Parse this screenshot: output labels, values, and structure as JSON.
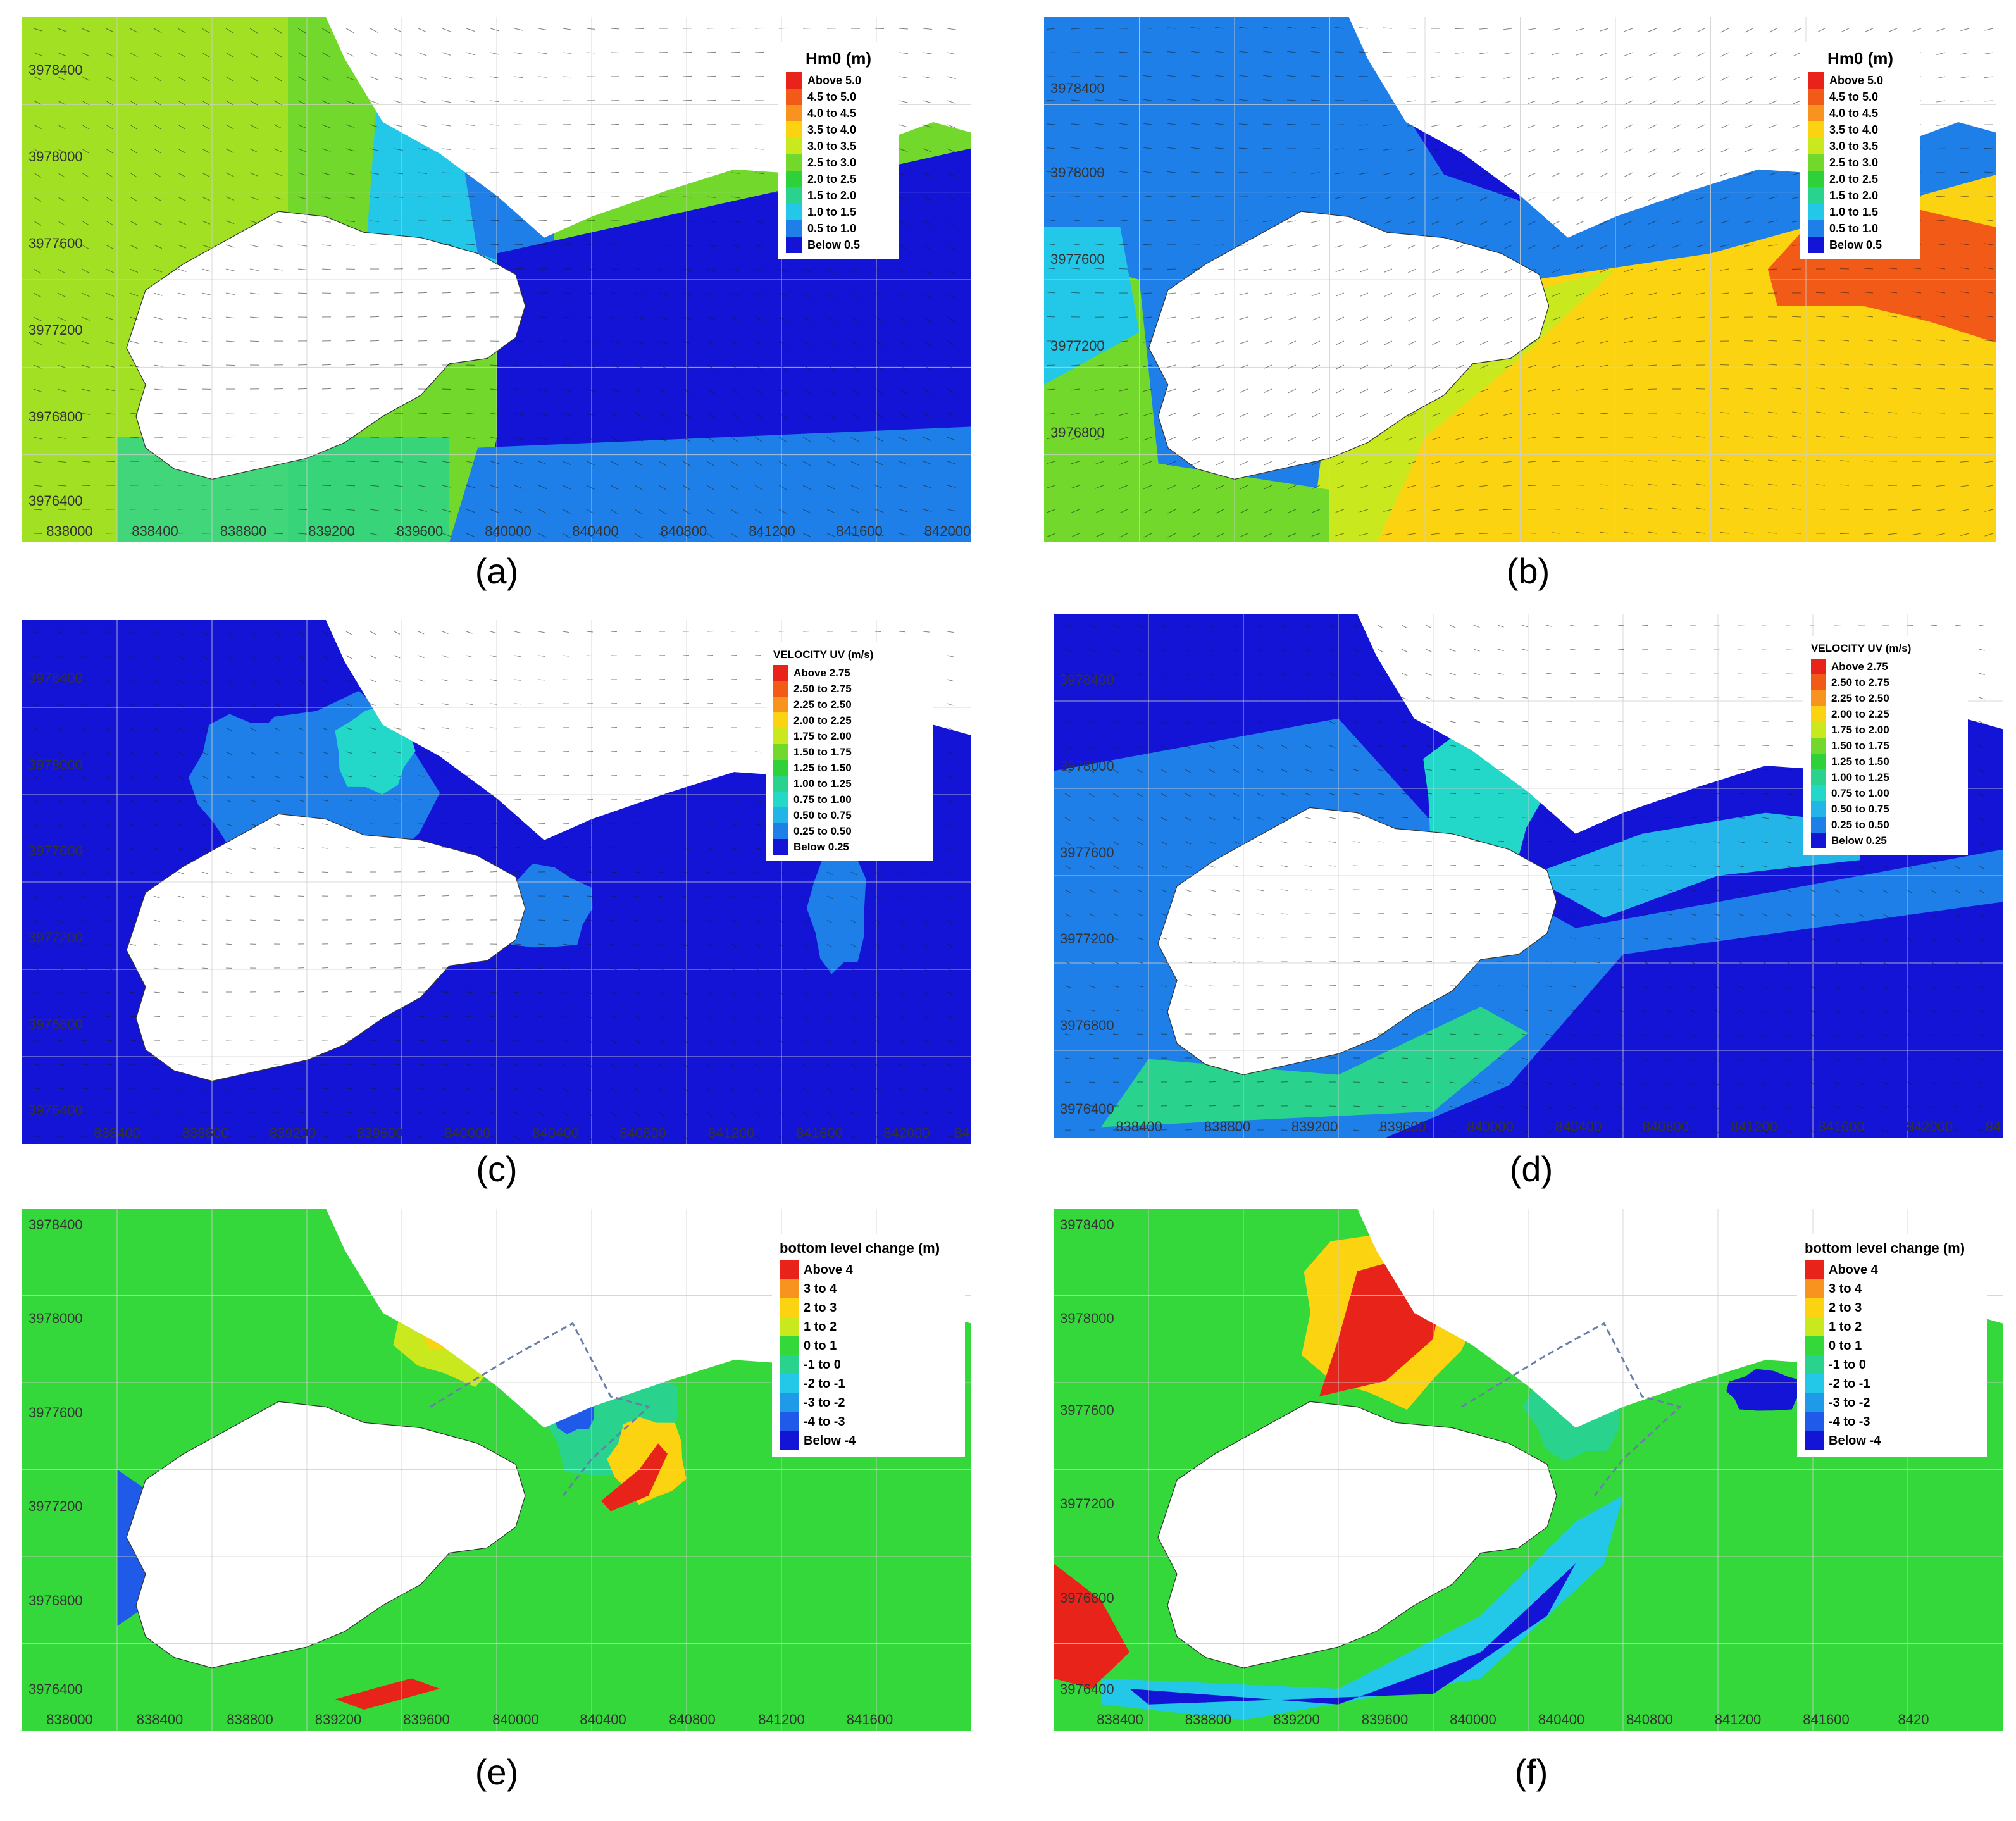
{
  "colors": {
    "land": "#ffffff",
    "grid": "#cfcfcf",
    "arrow": "#1a1a1a",
    "dashed_line": "#6a7fa8"
  },
  "panels": [
    {
      "id": "a",
      "caption": "(a)",
      "legend_title": "Hm0 (m)",
      "legend_items": [
        {
          "label": "Above 5.0",
          "color": "#e8231a"
        },
        {
          "label": "4.5 to 5.0",
          "color": "#f25a18"
        },
        {
          "label": "4.0 to 4.5",
          "color": "#f7931e"
        },
        {
          "label": "3.5 to 4.0",
          "color": "#fbd311"
        },
        {
          "label": "3.0 to 3.5",
          "color": "#c9e81e"
        },
        {
          "label": "2.5 to 3.0",
          "color": "#72d82b"
        },
        {
          "label": "2.0 to 2.5",
          "color": "#2fd13a"
        },
        {
          "label": "1.5 to 2.0",
          "color": "#29d38e"
        },
        {
          "label": "1.0 to 1.5",
          "color": "#23c8e8"
        },
        {
          "label": "0.5 to 1.0",
          "color": "#1f7fe8"
        },
        {
          "label": "Below 0.5",
          "color": "#1414d6"
        }
      ],
      "y_ticks": [
        "3978400",
        "3978000",
        "3977600",
        "3977200",
        "3976800",
        "3976400"
      ],
      "x_ticks": [
        "838000",
        "838400",
        "838800",
        "839200",
        "839600",
        "840000",
        "840400",
        "840800",
        "841200",
        "841600",
        "842000"
      ]
    },
    {
      "id": "b",
      "caption": "(b)",
      "legend_title": "Hm0 (m)",
      "legend_items": [
        {
          "label": "Above 5.0",
          "color": "#e8231a"
        },
        {
          "label": "4.5 to 5.0",
          "color": "#f25a18"
        },
        {
          "label": "4.0 to 4.5",
          "color": "#f7931e"
        },
        {
          "label": "3.5 to 4.0",
          "color": "#fbd311"
        },
        {
          "label": "3.0 to 3.5",
          "color": "#c9e81e"
        },
        {
          "label": "2.5 to 3.0",
          "color": "#72d82b"
        },
        {
          "label": "2.0 to 2.5",
          "color": "#2fd13a"
        },
        {
          "label": "1.5 to 2.0",
          "color": "#29d38e"
        },
        {
          "label": "1.0 to 1.5",
          "color": "#23c8e8"
        },
        {
          "label": "0.5 to 1.0",
          "color": "#1f7fe8"
        },
        {
          "label": "Below 0.5",
          "color": "#1414d6"
        }
      ],
      "y_ticks": [
        "3978400",
        "3978000",
        "3977600",
        "3977200",
        "3976800"
      ],
      "x_ticks": []
    },
    {
      "id": "c",
      "caption": "(c)",
      "legend_title": "VELOCITY UV (m/s)",
      "legend_items": [
        {
          "label": "Above 2.75",
          "color": "#e8231a"
        },
        {
          "label": "2.50 to 2.75",
          "color": "#f25a18"
        },
        {
          "label": "2.25 to 2.50",
          "color": "#f7931e"
        },
        {
          "label": "2.00 to 2.25",
          "color": "#fbd311"
        },
        {
          "label": "1.75 to 2.00",
          "color": "#c9e81e"
        },
        {
          "label": "1.50 to 1.75",
          "color": "#72d82b"
        },
        {
          "label": "1.25 to 1.50",
          "color": "#2fd13a"
        },
        {
          "label": "1.00 to 1.25",
          "color": "#29d38e"
        },
        {
          "label": "0.75 to 1.00",
          "color": "#23d8c8"
        },
        {
          "label": "0.50 to 0.75",
          "color": "#23b4e8"
        },
        {
          "label": "0.25 to 0.50",
          "color": "#1f7fe8"
        },
        {
          "label": "Below 0.25",
          "color": "#1414d6"
        }
      ],
      "y_ticks": [
        "3978400",
        "3978000",
        "3977600",
        "3977200",
        "3976800",
        "3976400"
      ],
      "x_ticks": [
        "838400",
        "838800",
        "839200",
        "839600",
        "840000",
        "840400",
        "840800",
        "841200",
        "841600",
        "842000",
        "84"
      ]
    },
    {
      "id": "d",
      "caption": "(d)",
      "legend_title": "VELOCITY UV (m/s)",
      "legend_items": [
        {
          "label": "Above 2.75",
          "color": "#e8231a"
        },
        {
          "label": "2.50 to 2.75",
          "color": "#f25a18"
        },
        {
          "label": "2.25 to 2.50",
          "color": "#f7931e"
        },
        {
          "label": "2.00 to 2.25",
          "color": "#fbd311"
        },
        {
          "label": "1.75 to 2.00",
          "color": "#c9e81e"
        },
        {
          "label": "1.50 to 1.75",
          "color": "#72d82b"
        },
        {
          "label": "1.25 to 1.50",
          "color": "#2fd13a"
        },
        {
          "label": "1.00 to 1.25",
          "color": "#29d38e"
        },
        {
          "label": "0.75 to 1.00",
          "color": "#23d8c8"
        },
        {
          "label": "0.50 to 0.75",
          "color": "#23b4e8"
        },
        {
          "label": "0.25 to 0.50",
          "color": "#1f7fe8"
        },
        {
          "label": "Below 0.25",
          "color": "#1414d6"
        }
      ],
      "y_ticks": [
        "3978400",
        "3978000",
        "3977600",
        "3977200",
        "3976800",
        "3976400"
      ],
      "x_ticks": [
        "838400",
        "838800",
        "839200",
        "839600",
        "840000",
        "840400",
        "840800",
        "841200",
        "841600",
        "842000",
        "84"
      ]
    },
    {
      "id": "e",
      "caption": "(e)",
      "legend_title": "bottom level change (m)",
      "legend_items": [
        {
          "label": "Above 4",
          "color": "#e8231a"
        },
        {
          "label": "3 to 4",
          "color": "#f7931e"
        },
        {
          "label": "2 to 3",
          "color": "#fbd311"
        },
        {
          "label": "1 to 2",
          "color": "#c9e81e"
        },
        {
          "label": "0 to 1",
          "color": "#35d83a"
        },
        {
          "label": "-1 to 0",
          "color": "#29d38e"
        },
        {
          "label": "-2 to -1",
          "color": "#23c8e8"
        },
        {
          "label": "-3 to -2",
          "color": "#1f9ae8"
        },
        {
          "label": "-4 to -3",
          "color": "#1f5ae8"
        },
        {
          "label": "Below -4",
          "color": "#1414d6"
        }
      ],
      "y_ticks": [
        "3978400",
        "3978000",
        "3977600",
        "3977200",
        "3976800",
        "3976400"
      ],
      "x_ticks": [
        "838000",
        "838400",
        "838800",
        "839200",
        "839600",
        "840000",
        "840400",
        "840800",
        "841200",
        "841600"
      ]
    },
    {
      "id": "f",
      "caption": "(f)",
      "legend_title": "bottom level change (m)",
      "legend_items": [
        {
          "label": "Above 4",
          "color": "#e8231a"
        },
        {
          "label": "3 to 4",
          "color": "#f7931e"
        },
        {
          "label": "2 to 3",
          "color": "#fbd311"
        },
        {
          "label": "1 to 2",
          "color": "#c9e81e"
        },
        {
          "label": "0 to 1",
          "color": "#35d83a"
        },
        {
          "label": "-1 to 0",
          "color": "#29d38e"
        },
        {
          "label": "-2 to -1",
          "color": "#23c8e8"
        },
        {
          "label": "-3 to -2",
          "color": "#1f9ae8"
        },
        {
          "label": "-4 to -3",
          "color": "#1f5ae8"
        },
        {
          "label": "Below -4",
          "color": "#1414d6"
        }
      ],
      "y_ticks": [
        "3978400",
        "3978000",
        "3977600",
        "3977200",
        "3976800",
        "3976400"
      ],
      "x_ticks": [
        "838400",
        "838800",
        "839200",
        "839600",
        "840000",
        "840400",
        "840800",
        "841200",
        "841600",
        "8420"
      ]
    }
  ]
}
